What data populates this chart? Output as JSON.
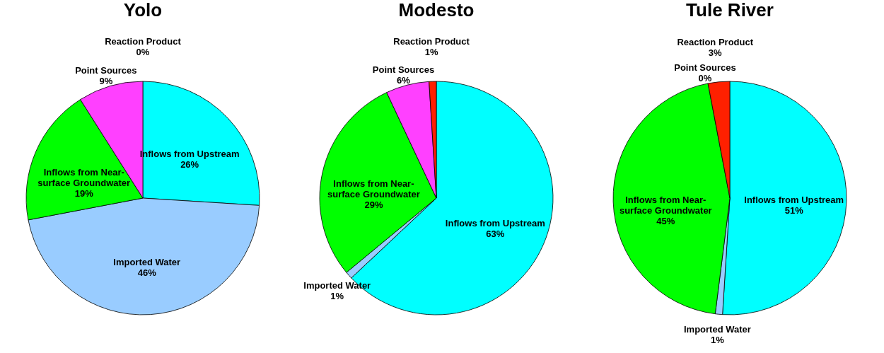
{
  "chart_data": [
    {
      "type": "pie",
      "title": "Yolo",
      "categories": [
        "Inflows from Upstream",
        "Imported Water",
        "Inflows from Near-surface Groundwater",
        "Point Sources",
        "Reaction Product"
      ],
      "values": [
        26,
        46,
        19,
        9,
        0
      ],
      "value_labels": [
        "26%",
        "46%",
        "19%",
        "9%",
        "0%"
      ],
      "colors": [
        "#00ffff",
        "#99ccff",
        "#00ff00",
        "#ff40ff",
        "#ff2000"
      ],
      "legend": false
    },
    {
      "type": "pie",
      "title": "Modesto",
      "categories": [
        "Inflows from Upstream",
        "Imported Water",
        "Inflows from Near-surface Groundwater",
        "Point Sources",
        "Reaction Product"
      ],
      "values": [
        63,
        1,
        29,
        6,
        1
      ],
      "value_labels": [
        "63%",
        "1%",
        "29%",
        "6%",
        "1%"
      ],
      "colors": [
        "#00ffff",
        "#99ccff",
        "#00ff00",
        "#ff40ff",
        "#ff2000"
      ],
      "legend": false
    },
    {
      "type": "pie",
      "title": "Tule River",
      "categories": [
        "Inflows from Upstream",
        "Imported Water",
        "Inflows from Near-surface Groundwater",
        "Point Sources",
        "Reaction Product"
      ],
      "values": [
        51,
        1,
        45,
        0,
        3
      ],
      "value_labels": [
        "51%",
        "1%",
        "45%",
        "0%",
        "3%"
      ],
      "colors": [
        "#00ffff",
        "#99ccff",
        "#00ff00",
        "#ff40ff",
        "#ff2000"
      ],
      "legend": false
    }
  ]
}
